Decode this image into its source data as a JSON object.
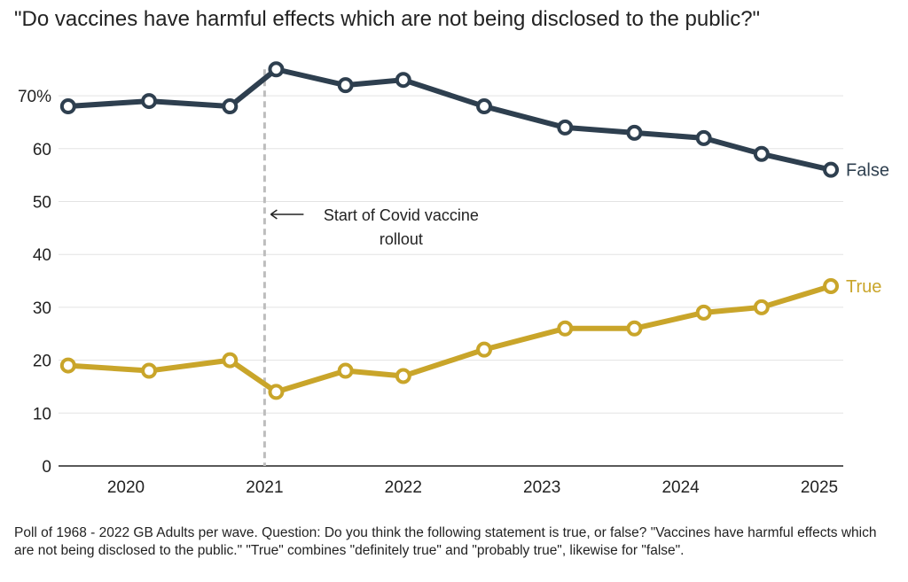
{
  "chart_data": {
    "type": "line",
    "title": "\"Do vaccines have harmful effects which are not being disclosed to the public?\"",
    "x_tick_labels": [
      "2020",
      "2021",
      "2022",
      "2023",
      "2024",
      "2025"
    ],
    "y_tick_labels": [
      "0",
      "10",
      "20",
      "30",
      "40",
      "50",
      "60",
      "70%"
    ],
    "ylim": [
      0,
      75
    ],
    "series": [
      {
        "name": "False",
        "color": "#2e3f4f",
        "x": [
          "2019-08",
          "2020-03",
          "2020-10",
          "2021-02",
          "2021-08",
          "2022-01",
          "2022-08",
          "2023-03",
          "2023-09",
          "2024-03",
          "2024-08",
          "2025-02"
        ],
        "values": [
          68,
          69,
          68,
          75,
          72,
          73,
          68,
          64,
          63,
          62,
          59,
          56
        ]
      },
      {
        "name": "True",
        "color": "#c9a52a",
        "x": [
          "2019-08",
          "2020-03",
          "2020-10",
          "2021-02",
          "2021-08",
          "2022-01",
          "2022-08",
          "2023-03",
          "2023-09",
          "2024-03",
          "2024-08",
          "2025-02"
        ],
        "values": [
          19,
          18,
          20,
          14,
          18,
          17,
          22,
          26,
          26,
          29,
          30,
          34
        ]
      }
    ],
    "annotation": {
      "text_lines": [
        "Start of Covid vaccine",
        "rollout"
      ],
      "x": "2021-01"
    },
    "grid": true,
    "legend": "inline labels at line ends"
  },
  "footnote": "Poll of 1968 - 2022 GB Adults per wave. Question: Do you think the following statement is true, or false? \"Vaccines have harmful effects which are not being disclosed to the public.\" \"True\" combines \"definitely true\" and \"probably true\", likewise for \"false\"."
}
